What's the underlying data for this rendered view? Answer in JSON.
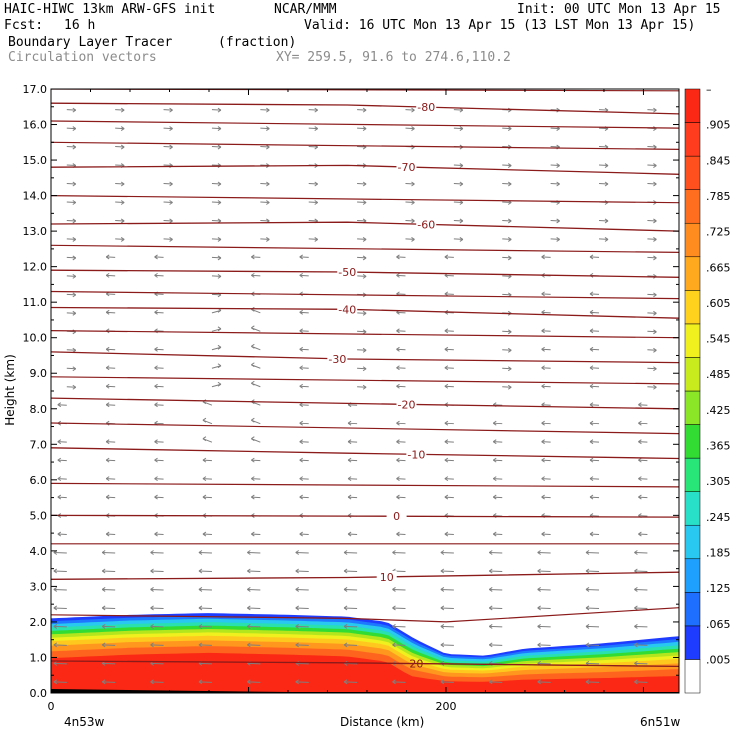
{
  "header": {
    "model": "HAIC-HIWC 13km ARW-GFS init",
    "org": "NCAR/MMM",
    "init": "Init: 00 UTC Mon 13 Apr 15",
    "fcst_label": "Fcst:",
    "fcst_value": "16 h",
    "valid": "Valid: 16 UTC Mon 13 Apr 15 (13 LST Mon 13 Apr 15)",
    "field": "Boundary Layer Tracer",
    "field_units": "(fraction)",
    "vectors": "Circulation vectors",
    "xy": "XY= 259.5, 91.6 to 274.6,110.2"
  },
  "colors": {
    "isotherm": "#8b1a1a",
    "vector": "#7f7f7f",
    "colorbar": [
      "#ffffff",
      "#1e3cff",
      "#1e6eff",
      "#1ea0ff",
      "#28c8f0",
      "#28e0c8",
      "#28e678",
      "#32dc32",
      "#8ce628",
      "#c8eb1e",
      "#f0f01e",
      "#ffd21e",
      "#ffaa1e",
      "#ff8c1e",
      "#ff6e1e",
      "#ff501e",
      "#ff3c1e",
      "#fa2814"
    ]
  },
  "chart_data": {
    "type": "heatmap",
    "xlabel": "Distance (km)",
    "ylabel": "Height (km)",
    "xlim": [
      0,
      318
    ],
    "ylim": [
      0,
      17
    ],
    "x_ticks": [
      {
        "value": 0,
        "label": "0"
      },
      {
        "value": 200,
        "label": "200"
      }
    ],
    "x_end_labels": {
      "left": "4n53w",
      "right": "6n51w"
    },
    "y_ticks": [
      "0.0",
      "1.0",
      "2.0",
      "3.0",
      "4.0",
      "5.0",
      "6.0",
      "7.0",
      "8.0",
      "9.0",
      "10.0",
      "11.0",
      "12.0",
      "13.0",
      "14.0",
      "15.0",
      "16.0",
      "17.0"
    ],
    "tracer_top_km": [
      {
        "x": 0,
        "y": 2.1
      },
      {
        "x": 40,
        "y": 2.2
      },
      {
        "x": 80,
        "y": 2.25
      },
      {
        "x": 120,
        "y": 2.2
      },
      {
        "x": 150,
        "y": 2.15
      },
      {
        "x": 170,
        "y": 2.0
      },
      {
        "x": 185,
        "y": 1.5
      },
      {
        "x": 200,
        "y": 1.1
      },
      {
        "x": 220,
        "y": 1.05
      },
      {
        "x": 240,
        "y": 1.25
      },
      {
        "x": 280,
        "y": 1.4
      },
      {
        "x": 318,
        "y": 1.6
      }
    ],
    "isotherms": [
      {
        "label": "-80",
        "label_x": 190,
        "points": [
          [
            0,
            16.6
          ],
          [
            150,
            16.55
          ],
          [
            318,
            16.3
          ]
        ]
      },
      {
        "label": "-70",
        "label_x": 180,
        "points": [
          [
            0,
            14.8
          ],
          [
            150,
            14.85
          ],
          [
            318,
            14.6
          ]
        ]
      },
      {
        "label": "-60",
        "label_x": 190,
        "points": [
          [
            0,
            13.2
          ],
          [
            150,
            13.25
          ],
          [
            318,
            13.0
          ]
        ]
      },
      {
        "label": "-50",
        "label_x": 150,
        "points": [
          [
            0,
            11.9
          ],
          [
            150,
            11.85
          ],
          [
            318,
            11.7
          ]
        ]
      },
      {
        "label": "-40",
        "label_x": 150,
        "points": [
          [
            0,
            10.85
          ],
          [
            150,
            10.8
          ],
          [
            318,
            10.55
          ]
        ]
      },
      {
        "label": "-30",
        "label_x": 145,
        "points": [
          [
            0,
            9.6
          ],
          [
            150,
            9.4
          ],
          [
            318,
            9.3
          ]
        ]
      },
      {
        "label": "-20",
        "label_x": 180,
        "points": [
          [
            0,
            8.3
          ],
          [
            150,
            8.15
          ],
          [
            318,
            8.0
          ]
        ]
      },
      {
        "label": "-10",
        "label_x": 185,
        "points": [
          [
            0,
            6.9
          ],
          [
            150,
            6.75
          ],
          [
            318,
            6.6
          ]
        ]
      },
      {
        "label": "0",
        "label_x": 175,
        "points": [
          [
            0,
            5.0
          ],
          [
            150,
            4.98
          ],
          [
            318,
            4.95
          ]
        ]
      },
      {
        "label": "10",
        "label_x": 170,
        "points": [
          [
            0,
            3.2
          ],
          [
            150,
            3.25
          ],
          [
            318,
            3.4
          ]
        ]
      },
      {
        "label": "20",
        "label_x": 185,
        "points": [
          [
            0,
            0.9
          ],
          [
            150,
            0.85
          ],
          [
            318,
            0.75
          ]
        ]
      }
    ],
    "extra_isotherms": [
      [
        [
          0,
          17.0
        ],
        [
          318,
          16.95
        ]
      ],
      [
        [
          0,
          16.1
        ],
        [
          318,
          15.9
        ]
      ],
      [
        [
          0,
          15.5
        ],
        [
          318,
          15.3
        ]
      ],
      [
        [
          0,
          14.0
        ],
        [
          318,
          13.8
        ]
      ],
      [
        [
          0,
          12.6
        ],
        [
          318,
          12.4
        ]
      ],
      [
        [
          0,
          11.3
        ],
        [
          318,
          11.1
        ]
      ],
      [
        [
          0,
          10.2
        ],
        [
          318,
          10.0
        ]
      ],
      [
        [
          0,
          8.9
        ],
        [
          318,
          8.7
        ]
      ],
      [
        [
          0,
          7.6
        ],
        [
          318,
          7.3
        ]
      ],
      [
        [
          0,
          5.9
        ],
        [
          318,
          5.8
        ]
      ],
      [
        [
          0,
          4.2
        ],
        [
          318,
          4.2
        ]
      ],
      [
        [
          0,
          2.2
        ],
        [
          150,
          2.1
        ],
        [
          200,
          2.0
        ],
        [
          318,
          2.4
        ]
      ]
    ],
    "colorbar": {
      "labels": [
        "–",
        ".905",
        ".845",
        ".785",
        ".725",
        ".665",
        ".605",
        ".545",
        ".485",
        ".425",
        ".365",
        ".305",
        ".245",
        ".185",
        ".125",
        ".065",
        ".005"
      ]
    }
  }
}
